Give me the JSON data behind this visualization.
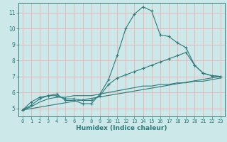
{
  "title": "",
  "xlabel": "Humidex (Indice chaleur)",
  "ylabel": "",
  "bg_color": "#cce8e8",
  "grid_color": "#e8b0b0",
  "line_color": "#2d7a7a",
  "axis_color": "#2d7a7a",
  "x_min": -0.5,
  "x_max": 23.5,
  "y_min": 4.5,
  "y_max": 11.6,
  "yticks": [
    5,
    6,
    7,
    8,
    9,
    10,
    11
  ],
  "xticks": [
    0,
    1,
    2,
    3,
    4,
    5,
    6,
    7,
    8,
    9,
    10,
    11,
    12,
    13,
    14,
    15,
    16,
    17,
    18,
    19,
    20,
    21,
    22,
    23
  ],
  "lines": [
    {
      "x": [
        0,
        1,
        2,
        3,
        4,
        5,
        6,
        7,
        8,
        9,
        10,
        11,
        12,
        13,
        14,
        15,
        16,
        17,
        18,
        19,
        20,
        21,
        22,
        23
      ],
      "y": [
        4.9,
        5.4,
        5.7,
        5.8,
        5.9,
        5.5,
        5.5,
        5.3,
        5.3,
        5.9,
        6.8,
        8.3,
        10.0,
        10.9,
        11.35,
        11.1,
        9.6,
        9.5,
        9.1,
        8.8,
        7.7,
        7.2,
        7.05,
        7.0
      ],
      "marker": true
    },
    {
      "x": [
        0,
        1,
        2,
        3,
        4,
        5,
        6,
        7,
        8,
        9,
        10,
        11,
        12,
        13,
        14,
        15,
        16,
        17,
        18,
        19,
        20,
        21,
        22,
        23
      ],
      "y": [
        4.9,
        5.2,
        5.6,
        5.8,
        5.8,
        5.6,
        5.6,
        5.5,
        5.5,
        5.8,
        6.5,
        6.9,
        7.1,
        7.3,
        7.5,
        7.7,
        7.9,
        8.1,
        8.3,
        8.5,
        7.7,
        7.2,
        7.05,
        7.0
      ],
      "marker": true
    },
    {
      "x": [
        0,
        23
      ],
      "y": [
        4.9,
        7.0
      ],
      "marker": false
    },
    {
      "x": [
        0,
        1,
        2,
        3,
        4,
        5,
        6,
        7,
        8,
        9,
        10,
        11,
        12,
        13,
        14,
        15,
        16,
        17,
        18,
        19,
        20,
        21,
        22,
        23
      ],
      "y": [
        4.9,
        5.1,
        5.4,
        5.6,
        5.7,
        5.7,
        5.8,
        5.8,
        5.8,
        5.9,
        6.0,
        6.1,
        6.2,
        6.3,
        6.4,
        6.4,
        6.5,
        6.5,
        6.6,
        6.6,
        6.7,
        6.7,
        6.8,
        6.9
      ],
      "marker": false
    }
  ]
}
